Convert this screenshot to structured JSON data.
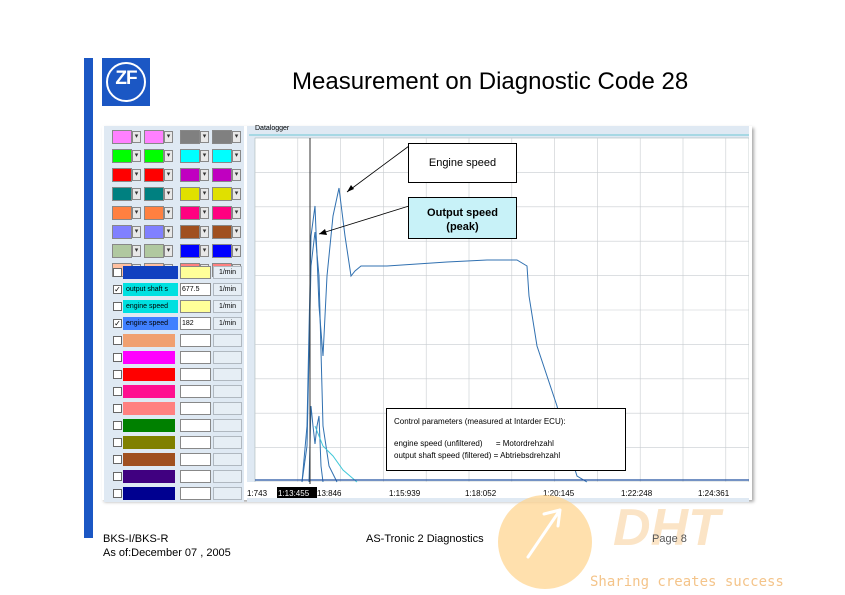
{
  "slide": {
    "title": "Measurement on Diagnostic Code 28",
    "logo_text": "ZF"
  },
  "datalogger": {
    "title": "Datalogger",
    "x_ticks": [
      "1:743",
      "1:13:455",
      "13:846",
      "1:15:939",
      "1:18:052",
      "1:20:145",
      "1:22:248",
      "1:24:361"
    ],
    "cursor_label": "1:13:455"
  },
  "color_pickers": [
    [
      "#ff80ff",
      "#ff80ff",
      "#808080",
      "#808080"
    ],
    [
      "#00ff00",
      "#00ff00",
      "#00ffff",
      "#00ffff"
    ],
    [
      "#ff0000",
      "#ff0000",
      "#c000c0",
      "#c000c0"
    ],
    [
      "#008080",
      "#008080",
      "#e0e000",
      "#e0e000"
    ],
    [
      "#ff8040",
      "#ff8040",
      "#ff0080",
      "#ff0080"
    ],
    [
      "#8080ff",
      "#8080ff",
      "#a05020",
      "#a05020"
    ],
    [
      "#b0c8a0",
      "#b0c8a0",
      "#0000ff",
      "#0000ff"
    ],
    [
      "#ffc0a0",
      "#ffc0a0",
      "#ff8080",
      "#ff8080"
    ]
  ],
  "channels": [
    {
      "checked": false,
      "label": "",
      "color": "#1040c0",
      "value": "",
      "unit": "1/min"
    },
    {
      "checked": true,
      "label": "output shaft s",
      "color": "#00e0e0",
      "value": "677.5",
      "unit": "1/min"
    },
    {
      "checked": false,
      "label": "engine speed",
      "color": "#00e0e0",
      "value": "",
      "unit": "1/min"
    },
    {
      "checked": true,
      "label": "engine speed",
      "color": "#4080ff",
      "value": "182",
      "unit": "1/min"
    }
  ],
  "extra_channels": [
    {
      "color": "#f0a070"
    },
    {
      "color": "#ff00ff"
    },
    {
      "color": "#ff0000"
    },
    {
      "color": "#ff1090"
    },
    {
      "color": "#ff8080"
    },
    {
      "color": "#008000"
    },
    {
      "color": "#808000"
    },
    {
      "color": "#a05020"
    },
    {
      "color": "#400080"
    },
    {
      "color": "#000090"
    }
  ],
  "callouts": {
    "engine_speed": "Engine speed",
    "output_speed_1": "Output speed",
    "output_speed_2": "(peak)"
  },
  "control_box": {
    "title": "Control parameters (measured at Intarder ECU):",
    "line1": "engine speed (unfiltered)      = Motordrehzahl",
    "line2": "output shaft speed (filtered) = Abtriebsdrehzahl"
  },
  "footer": {
    "left1": "BKS-I/BKS-R",
    "left2": "As of:December 07 , 2005",
    "center": "AS-Tronic 2 Diagnostics",
    "page": "Page 8"
  },
  "watermark": {
    "brand": "DHT",
    "tagline": "Sharing creates success"
  }
}
